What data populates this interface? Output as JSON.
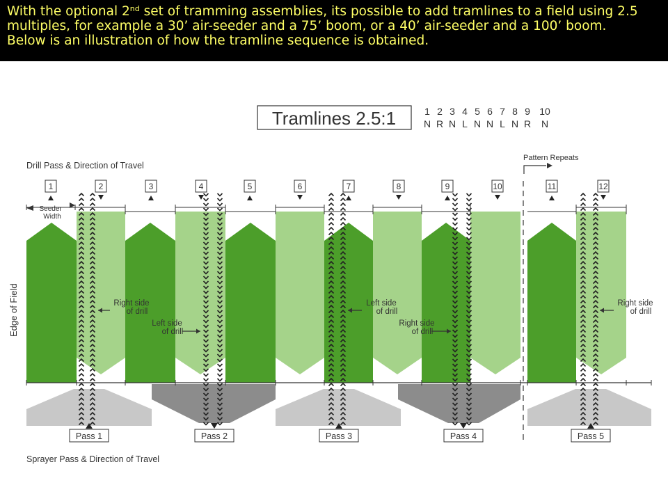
{
  "header": {
    "line1_pre": "With the optional 2",
    "line1_sup": "nd",
    "line1_post": " set of tramming assemblies, its possible to add tramlines to a field using 2.5",
    "line2": "multiples, for example a 30’ air-seeder and a 75’ boom, or a 40’ air-seeder and a 100’ boom.",
    "line3": "Below is an illustration of how the tramline sequence is obtained."
  },
  "diagram": {
    "title": "Tramlines 2.5:1",
    "sequence_numbers": [
      "1",
      "2",
      "3",
      "4",
      "5",
      "6",
      "7",
      "8",
      "9",
      "10"
    ],
    "sequence_codes": [
      "N",
      "R",
      "N",
      "L",
      "N",
      "N",
      "L",
      "N",
      "R",
      "N"
    ],
    "drill_label": "Drill Pass & Direction of Travel",
    "sprayer_label": "Sprayer Pass & Direction of Travel",
    "edge_label": "Edge of Field",
    "pattern_repeats": "Pattern Repeats",
    "seeder_width": [
      "Seeder",
      "Width"
    ],
    "drill_passes": [
      "1",
      "2",
      "3",
      "4",
      "5",
      "6",
      "7",
      "8",
      "9",
      "10",
      "11",
      "12"
    ],
    "sprayer_passes": [
      "Pass 1",
      "Pass 2",
      "Pass 3",
      "Pass 4",
      "Pass 5"
    ],
    "annotations": {
      "right_side_1": [
        "Right side",
        "of drill"
      ],
      "left_side_1": [
        "Left side",
        "of drill"
      ],
      "left_side_2": [
        "Left side",
        "of drill"
      ],
      "right_side_2": [
        "Right side",
        "of drill"
      ],
      "right_side_3": [
        "Right side",
        "of drill"
      ]
    },
    "colors": {
      "dark_green": "#4c9e2a",
      "light_green": "#a5d38a",
      "sprayer_light": "#c8c8c8",
      "sprayer_dark": "#8c8c8c",
      "header_bg": "#000000",
      "header_text": "#ffff66"
    }
  }
}
